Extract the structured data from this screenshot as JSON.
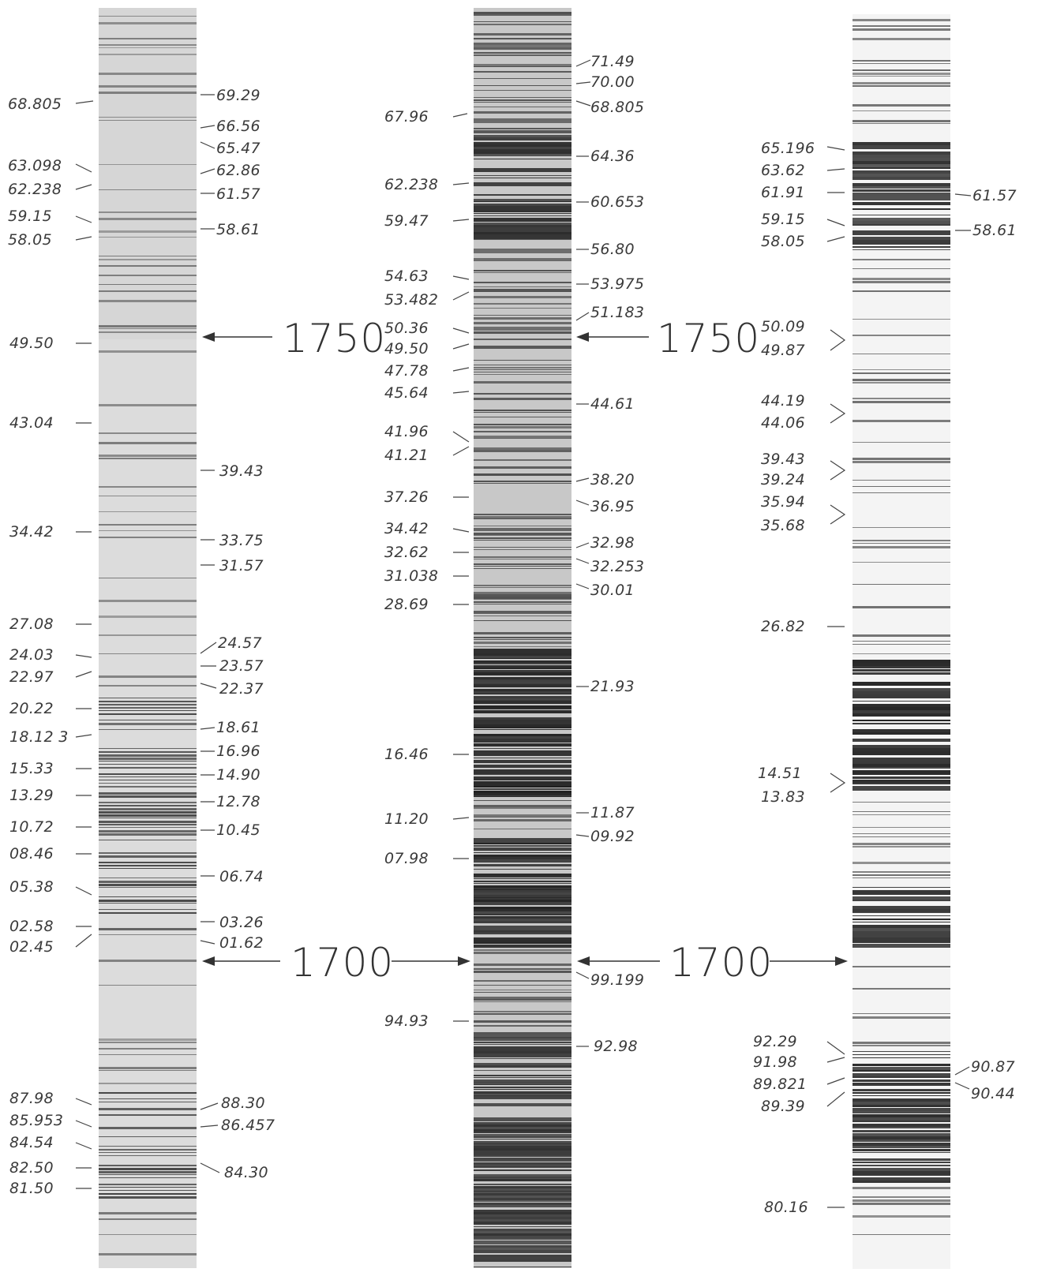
{
  "markers": {
    "m1750": "1750",
    "m1700": "1700"
  },
  "strips": {
    "left": {
      "labels_left": [
        "68.805",
        "63.098",
        "62.238",
        "59.15",
        "58.05",
        "49.50",
        "43.04",
        "34.42",
        "27.08",
        "24.03",
        "22.97",
        "20.22",
        "18.12 3",
        "15.33",
        "13.29",
        "10.72",
        "08.46",
        "05.38",
        "02.58",
        "02.45",
        "87.98",
        "85.953",
        "84.54",
        "82.50",
        "81.50"
      ],
      "labels_right": [
        "69.29",
        "66.56",
        "65.47",
        "62.86",
        "61.57",
        "58.61",
        "39.43",
        "33.75",
        "31.57",
        "24.57",
        "23.57",
        "22.37",
        "18.61",
        "16.96",
        "14.90",
        "12.78",
        "10.45",
        "06.74",
        "03.26",
        "01.62",
        "88.30",
        "86.457",
        "84.30"
      ]
    },
    "middle": {
      "labels_left": [
        "67.96",
        "62.238",
        "59.47",
        "54.63",
        "53.482",
        "50.36",
        "49.50",
        "47.78",
        "45.64",
        "41.96",
        "41.21",
        "37.26",
        "34.42",
        "32.62",
        "31.038",
        "28.69",
        "16.46",
        "11.20",
        "07.98",
        "94.93"
      ],
      "labels_right": [
        "71.49",
        "70.00",
        "68.805",
        "64.36",
        "60.653",
        "56.80",
        "53.975",
        "51.183",
        "44.61",
        "38.20",
        "36.95",
        "32.98",
        "32.253",
        "30.01",
        "21.93",
        "11.87",
        "09.92",
        "99.199",
        "92.98"
      ]
    },
    "right": {
      "labels_left": [
        "65.196",
        "63.62",
        "61.91",
        "59.15",
        "58.05",
        "50.09",
        "49.87",
        "44.19",
        "44.06",
        "39.43",
        "39.24",
        "35.94",
        "35.68",
        "26.82",
        "14.51",
        "13.83",
        "92.29",
        "91.98",
        "89.821",
        "89.39",
        "80.16"
      ],
      "labels_right": [
        "61.57",
        "58.61",
        "90.87",
        "90.44"
      ]
    }
  },
  "colors": {
    "paper": "#ffffff",
    "ink": "#3a3a3a",
    "strip_light": "#d8d8d8",
    "strip_dark": "#2a2a2a"
  }
}
